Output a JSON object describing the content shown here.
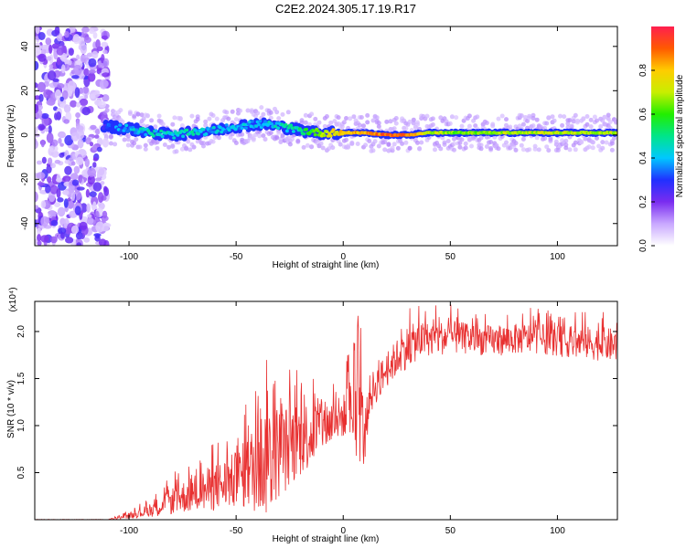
{
  "title": "C2E2.2024.305.17.19.R17",
  "chart_data": [
    {
      "type": "heatmap",
      "name": "spectrogram",
      "xlabel": "Height of straight line (km)",
      "ylabel": "Frequency (Hz)",
      "xlim": [
        -144,
        128
      ],
      "ylim": [
        -50,
        49
      ],
      "xticks": [
        -100,
        -50,
        0,
        50,
        100
      ],
      "yticks": [
        -40,
        -20,
        0,
        20,
        40
      ],
      "colorbar": {
        "label": "Normalized spectral amplitude",
        "range": [
          0,
          1
        ],
        "ticks": [
          0.0,
          0.2,
          0.4,
          0.6,
          0.8
        ],
        "colors": [
          "#ffffff",
          "#c9a8ff",
          "#7a2cf0",
          "#2030ff",
          "#00c8ff",
          "#00e58a",
          "#22ee00",
          "#c8ee00",
          "#ffcc00",
          "#ff5a00",
          "#ff1f4f"
        ]
      },
      "ridge": {
        "x": [
          -112,
          -100,
          -90,
          -80,
          -70,
          -60,
          -50,
          -40,
          -30,
          -20,
          -10,
          0,
          10,
          20,
          30,
          40,
          50,
          60,
          80,
          100,
          128
        ],
        "freq": [
          4,
          3,
          1,
          0,
          1,
          2,
          4,
          5,
          4,
          2,
          1,
          1,
          1,
          0,
          0,
          1,
          1,
          1,
          1,
          1,
          1
        ],
        "amplitude": [
          0.35,
          0.45,
          0.5,
          0.5,
          0.5,
          0.45,
          0.45,
          0.45,
          0.5,
          0.55,
          0.75,
          0.85,
          0.9,
          0.95,
          0.95,
          0.75,
          0.7,
          0.7,
          0.75,
          0.75,
          0.75
        ]
      },
      "noise_region_x": [
        -144,
        -110
      ]
    },
    {
      "type": "line",
      "name": "snr",
      "xlabel": "Height of straight line (km)",
      "ylabel": "SNR (10 * v/v)",
      "yscale_label": "(x10⁴)",
      "xlim": [
        -144,
        128
      ],
      "ylim": [
        0,
        2.32
      ],
      "xticks": [
        -100,
        -50,
        0,
        50,
        100
      ],
      "yticks": [
        0.5,
        1.0,
        1.5,
        2.0
      ],
      "ytick_labels": [
        "0.5",
        "1.0",
        "1.5",
        "2.0"
      ],
      "color": "#e83030",
      "x": [
        -144,
        -110,
        -100,
        -90,
        -80,
        -70,
        -60,
        -50,
        -45,
        -40,
        -35,
        -30,
        -25,
        -20,
        -15,
        -10,
        -5,
        0,
        5,
        8,
        10,
        12,
        15,
        20,
        25,
        30,
        35,
        40,
        50,
        60,
        70,
        80,
        90,
        100,
        110,
        120,
        128
      ],
      "y": [
        0.0,
        0.0,
        0.04,
        0.1,
        0.2,
        0.28,
        0.34,
        0.42,
        0.5,
        0.58,
        0.66,
        0.72,
        0.78,
        0.86,
        0.92,
        0.98,
        1.04,
        1.1,
        1.16,
        1.2,
        0.8,
        1.3,
        1.42,
        1.58,
        1.72,
        1.84,
        1.9,
        1.92,
        1.94,
        1.92,
        1.9,
        1.92,
        1.93,
        1.9,
        1.88,
        1.87,
        1.85
      ],
      "spread": [
        0.0,
        0.0,
        0.03,
        0.08,
        0.16,
        0.22,
        0.28,
        0.34,
        0.42,
        0.6,
        0.7,
        0.55,
        0.5,
        0.45,
        0.4,
        0.3,
        0.28,
        0.25,
        0.5,
        0.7,
        0.3,
        0.25,
        0.22,
        0.2,
        0.22,
        0.25,
        0.22,
        0.2,
        0.2,
        0.18,
        0.18,
        0.18,
        0.18,
        0.18,
        0.2,
        0.2,
        0.2
      ]
    }
  ]
}
